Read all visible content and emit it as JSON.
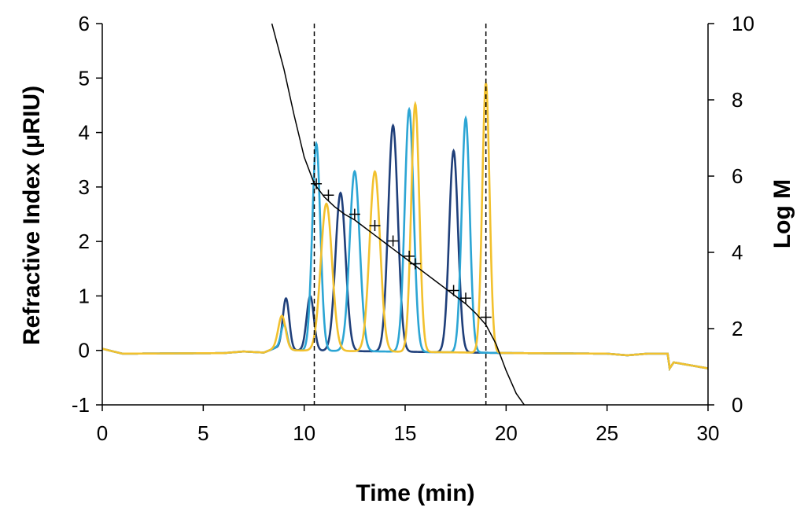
{
  "chart_data": {
    "type": "line",
    "title": "",
    "xlabel": "Time (min)",
    "ylabel_left": "Refractive Index (μRIU)",
    "ylabel_right": "Log M",
    "xlim": [
      0,
      30
    ],
    "ylim_left": [
      -1,
      6
    ],
    "ylim_right": [
      0,
      10
    ],
    "x_ticks": [
      "0",
      "5",
      "10",
      "15",
      "20",
      "25",
      "30"
    ],
    "y_left_ticks": [
      "-1",
      "0",
      "1",
      "2",
      "3",
      "4",
      "5",
      "6"
    ],
    "y_right_ticks": [
      "0",
      "2",
      "4",
      "6",
      "8",
      "10"
    ],
    "grid": false,
    "legend": "none",
    "reference_lines_x": [
      10.5,
      19.0
    ],
    "series": [
      {
        "color": "#1f3f7a",
        "baseline": [
          [
            0,
            0.03
          ],
          [
            1,
            -0.06
          ],
          [
            6,
            -0.05
          ],
          [
            7,
            -0.02
          ],
          [
            8,
            -0.04
          ],
          [
            8.6,
            0.05
          ],
          [
            9.6,
            0.0
          ],
          [
            20.5,
            -0.05
          ],
          [
            25,
            -0.06
          ],
          [
            26,
            -0.09
          ],
          [
            27,
            -0.06
          ],
          [
            28,
            -0.06
          ],
          [
            28.1,
            -0.33
          ],
          [
            28.3,
            -0.22
          ],
          [
            30,
            -0.33
          ]
        ],
        "peaks": [
          [
            9.1,
            0.93,
            0.16
          ],
          [
            10.3,
            1.0,
            0.18
          ],
          [
            11.8,
            2.9,
            0.25
          ],
          [
            14.4,
            4.15,
            0.24
          ],
          [
            17.4,
            3.7,
            0.22
          ]
        ]
      },
      {
        "color": "#2ca5d4",
        "baseline": [
          [
            0,
            0.03
          ],
          [
            1,
            -0.06
          ],
          [
            6,
            -0.05
          ],
          [
            7,
            -0.02
          ],
          [
            8,
            -0.04
          ],
          [
            8.6,
            0.05
          ],
          [
            9.6,
            0.0
          ],
          [
            20.5,
            -0.05
          ],
          [
            25,
            -0.06
          ],
          [
            26,
            -0.09
          ],
          [
            27,
            -0.06
          ],
          [
            28,
            -0.06
          ],
          [
            28.1,
            -0.33
          ],
          [
            28.3,
            -0.22
          ],
          [
            30,
            -0.33
          ]
        ],
        "peaks": [
          [
            9.0,
            0.45,
            0.15
          ],
          [
            10.6,
            3.8,
            0.2
          ],
          [
            12.5,
            3.3,
            0.25
          ],
          [
            15.2,
            4.45,
            0.22
          ],
          [
            18.0,
            4.3,
            0.2
          ]
        ]
      },
      {
        "color": "#f2c12e",
        "baseline": [
          [
            0,
            0.03
          ],
          [
            1,
            -0.06
          ],
          [
            6,
            -0.05
          ],
          [
            7,
            -0.02
          ],
          [
            8,
            -0.04
          ],
          [
            8.6,
            0.05
          ],
          [
            9.6,
            0.0
          ],
          [
            20.5,
            -0.05
          ],
          [
            25,
            -0.06
          ],
          [
            26,
            -0.09
          ],
          [
            27,
            -0.06
          ],
          [
            28,
            -0.06
          ],
          [
            28.1,
            -0.33
          ],
          [
            28.3,
            -0.22
          ],
          [
            30,
            -0.33
          ]
        ],
        "peaks": [
          [
            8.9,
            0.6,
            0.18
          ],
          [
            11.1,
            2.7,
            0.28
          ],
          [
            13.5,
            3.3,
            0.26
          ],
          [
            15.5,
            4.55,
            0.2
          ],
          [
            19.0,
            4.95,
            0.18
          ]
        ]
      },
      {
        "color": "#000000",
        "axis": "right",
        "x": [
          8.4,
          9.0,
          9.5,
          10.0,
          10.5,
          11.0,
          11.5,
          12.0,
          12.5,
          13.0,
          13.5,
          14.0,
          14.5,
          15.0,
          15.5,
          16.0,
          16.5,
          17.0,
          17.5,
          18.0,
          18.5,
          19.0,
          19.5,
          20.0,
          20.5,
          20.9
        ],
        "y": [
          10.0,
          8.8,
          7.6,
          6.5,
          5.8,
          5.45,
          5.2,
          5.0,
          4.85,
          4.65,
          4.45,
          4.25,
          4.05,
          3.85,
          3.65,
          3.45,
          3.25,
          3.05,
          2.85,
          2.65,
          2.4,
          2.1,
          1.6,
          0.9,
          0.3,
          0.0
        ]
      }
    ],
    "calibration_points": {
      "axis": "right",
      "x": [
        10.6,
        11.2,
        12.5,
        13.5,
        14.4,
        15.2,
        15.5,
        17.4,
        18.0,
        19.0
      ],
      "y": [
        5.8,
        5.5,
        5.0,
        4.7,
        4.3,
        3.9,
        3.7,
        3.0,
        2.8,
        2.3
      ]
    }
  }
}
